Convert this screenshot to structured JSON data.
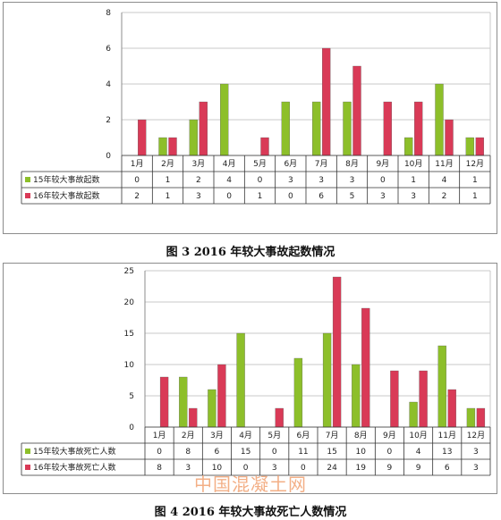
{
  "colors": {
    "green": "#8dbf2a",
    "red": "#d93a57",
    "axis": "#8c8c8c",
    "grid": "#c8c8c8"
  },
  "watermark": "中国混凝土网",
  "chart_data": [
    {
      "type": "bar",
      "caption": "图 3   2016 年较大事故起数情况",
      "categories": [
        "1月",
        "2月",
        "3月",
        "4月",
        "5月",
        "6月",
        "7月",
        "8月",
        "9月",
        "10月",
        "11月",
        "12月"
      ],
      "series": [
        {
          "name": "15年较大事故起数",
          "color": "green",
          "values": [
            0,
            1,
            2,
            4,
            0,
            3,
            3,
            3,
            0,
            1,
            4,
            1
          ]
        },
        {
          "name": "16年较大事故起数",
          "color": "red",
          "values": [
            2,
            1,
            3,
            0,
            1,
            0,
            6,
            5,
            3,
            3,
            2,
            1
          ]
        }
      ],
      "ylim": [
        0,
        8
      ],
      "yticks": [
        0,
        2,
        4,
        6,
        8
      ],
      "grid": true,
      "data_table": true
    },
    {
      "type": "bar",
      "caption": "图 4   2016 年较大事故死亡人数情况",
      "categories": [
        "1月",
        "2月",
        "3月",
        "4月",
        "5月",
        "6月",
        "7月",
        "8月",
        "9月",
        "10月",
        "11月",
        "12月"
      ],
      "series": [
        {
          "name": "15年较大事故死亡人数",
          "color": "green",
          "values": [
            0,
            8,
            6,
            15,
            0,
            11,
            15,
            10,
            0,
            4,
            13,
            3
          ]
        },
        {
          "name": "16年较大事故死亡人数",
          "color": "red",
          "values": [
            8,
            3,
            10,
            0,
            3,
            0,
            24,
            19,
            9,
            9,
            6,
            3
          ]
        }
      ],
      "ylim": [
        0,
        25
      ],
      "yticks": [
        0,
        5,
        10,
        15,
        20,
        25
      ],
      "grid": true,
      "data_table": true
    }
  ]
}
